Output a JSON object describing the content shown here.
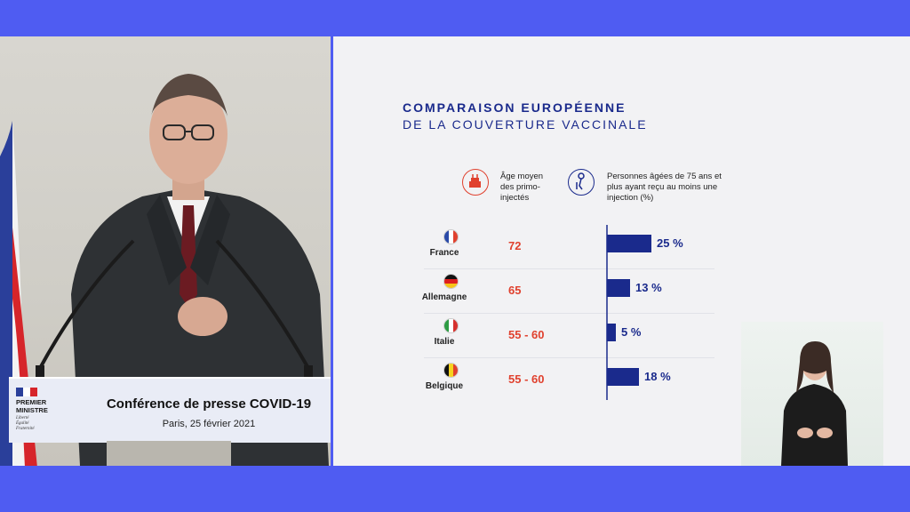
{
  "podium": {
    "org_line1": "PREMIER",
    "org_line2": "MINISTRE",
    "motto1": "Liberté",
    "motto2": "Égalité",
    "motto3": "Fraternité",
    "title": "Conférence de presse COVID-19",
    "subtitle": "Paris, 25 février 2021"
  },
  "slide": {
    "title_line1": "COMPARAISON EUROPÉENNE",
    "title_line2": "DE LA COUVERTURE VACCINALE",
    "col1_header": [
      "Âge moyen",
      "des primo-",
      "injectés"
    ],
    "col2_header": [
      "Personnes âgées de 75 ans et",
      "plus ayant reçu au moins une",
      "injection (%)"
    ],
    "col1_icon": "cake-icon",
    "col2_icon": "elderly-person-icon"
  },
  "colors": {
    "accent_blue": "#1a2a8c",
    "accent_red": "#e0412e",
    "frame_blue": "#4f5cf2"
  },
  "chart_data": {
    "type": "bar",
    "title": "COMPARAISON EUROPÉENNE DE LA COUVERTURE VACCINALE",
    "categories": [
      "France",
      "Allemagne",
      "Italie",
      "Belgique"
    ],
    "age_labels": [
      "72",
      "65",
      "55 - 60",
      "55 - 60"
    ],
    "values": [
      25,
      13,
      5,
      18
    ],
    "value_labels": [
      "25 %",
      "13 %",
      "5 %",
      "18 %"
    ],
    "xlim": [
      0,
      25
    ],
    "grid": false,
    "orientation": "horizontal"
  },
  "countries": [
    {
      "name": "France",
      "age": "72",
      "pct": "25 %",
      "flag": [
        "#2a4aa8",
        "#ffffff",
        "#e0412e"
      ],
      "flag_dir": "v"
    },
    {
      "name": "Allemagne",
      "age": "65",
      "pct": "13 %",
      "flag": [
        "#111111",
        "#dd1f1f",
        "#f6c419"
      ],
      "flag_dir": "h"
    },
    {
      "name": "Italie",
      "age": "55 - 60",
      "pct": "5 %",
      "flag": [
        "#2d9b43",
        "#ffffff",
        "#d6312e"
      ],
      "flag_dir": "v"
    },
    {
      "name": "Belgique",
      "age": "55 - 60",
      "pct": "18 %",
      "flag": [
        "#111111",
        "#f6d31f",
        "#e0412e"
      ],
      "flag_dir": "v"
    }
  ]
}
